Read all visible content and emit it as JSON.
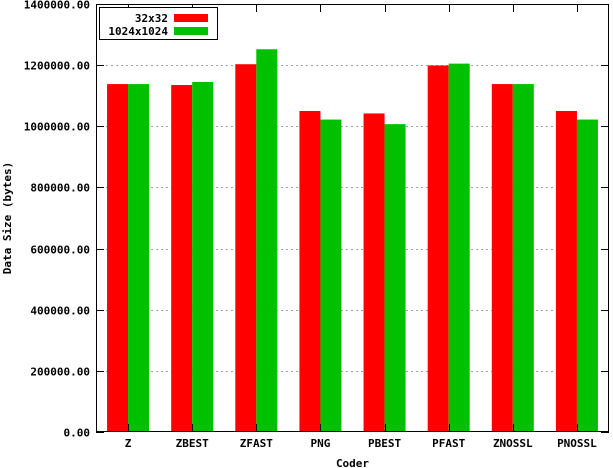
{
  "chart_data": {
    "type": "bar",
    "title": "",
    "xlabel": "Coder",
    "ylabel": "Data Size (bytes)",
    "ylim": [
      0,
      1400000
    ],
    "yticks": [
      0,
      200000,
      400000,
      600000,
      800000,
      1000000,
      1200000,
      1400000
    ],
    "ytick_labels": [
      "0.00",
      "200000.00",
      "400000.00",
      "600000.00",
      "800000.00",
      "1000000.00",
      "1200000.00",
      "1400000.00"
    ],
    "categories": [
      "Z",
      "ZBEST",
      "ZFAST",
      "PNG",
      "PBEST",
      "PFAST",
      "ZNOSSL",
      "PNOSSL"
    ],
    "series": [
      {
        "name": "32x32",
        "color": "#ff0000",
        "values": [
          1138000,
          1135000,
          1203000,
          1050000,
          1042000,
          1199000,
          1138000,
          1050000
        ]
      },
      {
        "name": "1024x1024",
        "color": "#00c000",
        "values": [
          1138000,
          1145000,
          1252000,
          1022000,
          1007000,
          1205000,
          1138000,
          1022000
        ]
      }
    ],
    "grid": {
      "y": true,
      "x": false
    },
    "legend_position": "top-left"
  }
}
